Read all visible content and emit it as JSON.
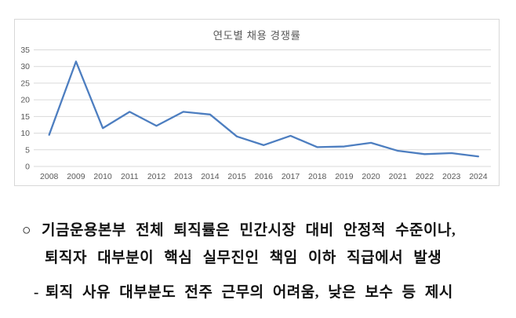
{
  "chart_data": {
    "type": "line",
    "title": "연도별 채용 경쟁률",
    "categories": [
      "2008",
      "2009",
      "2010",
      "2011",
      "2012",
      "2013",
      "2014",
      "2015",
      "2016",
      "2017",
      "2018",
      "2019",
      "2020",
      "2021",
      "2022",
      "2023",
      "2024"
    ],
    "values": [
      9.5,
      31.5,
      11.5,
      16.4,
      12.2,
      16.4,
      15.6,
      9.0,
      6.4,
      9.2,
      5.8,
      6.0,
      7.1,
      4.7,
      3.7,
      4.0,
      3.0
    ],
    "xlabel": "",
    "ylabel": "",
    "ylim": [
      0,
      35
    ],
    "yticks": [
      0,
      5,
      10,
      15,
      20,
      25,
      30,
      35
    ],
    "grid": true,
    "legend_position": "none",
    "line_color": "#4d7ec0",
    "gridline_color": "#d9d9d9",
    "tick_label_color": "#595959"
  },
  "body": {
    "bullet_marker": "○",
    "bullet_line1": "기금운용본부 전체 퇴직률은 민간시장 대비 안정적 수준이나,",
    "bullet_line2": "퇴직자 대부분이 핵심 실무진인 책임 이하 직급에서 발생",
    "sub_marker": "-",
    "sub_line": "퇴직 사유 대부분도 전주 근무의 어려움, 낮은 보수 등 제시"
  }
}
